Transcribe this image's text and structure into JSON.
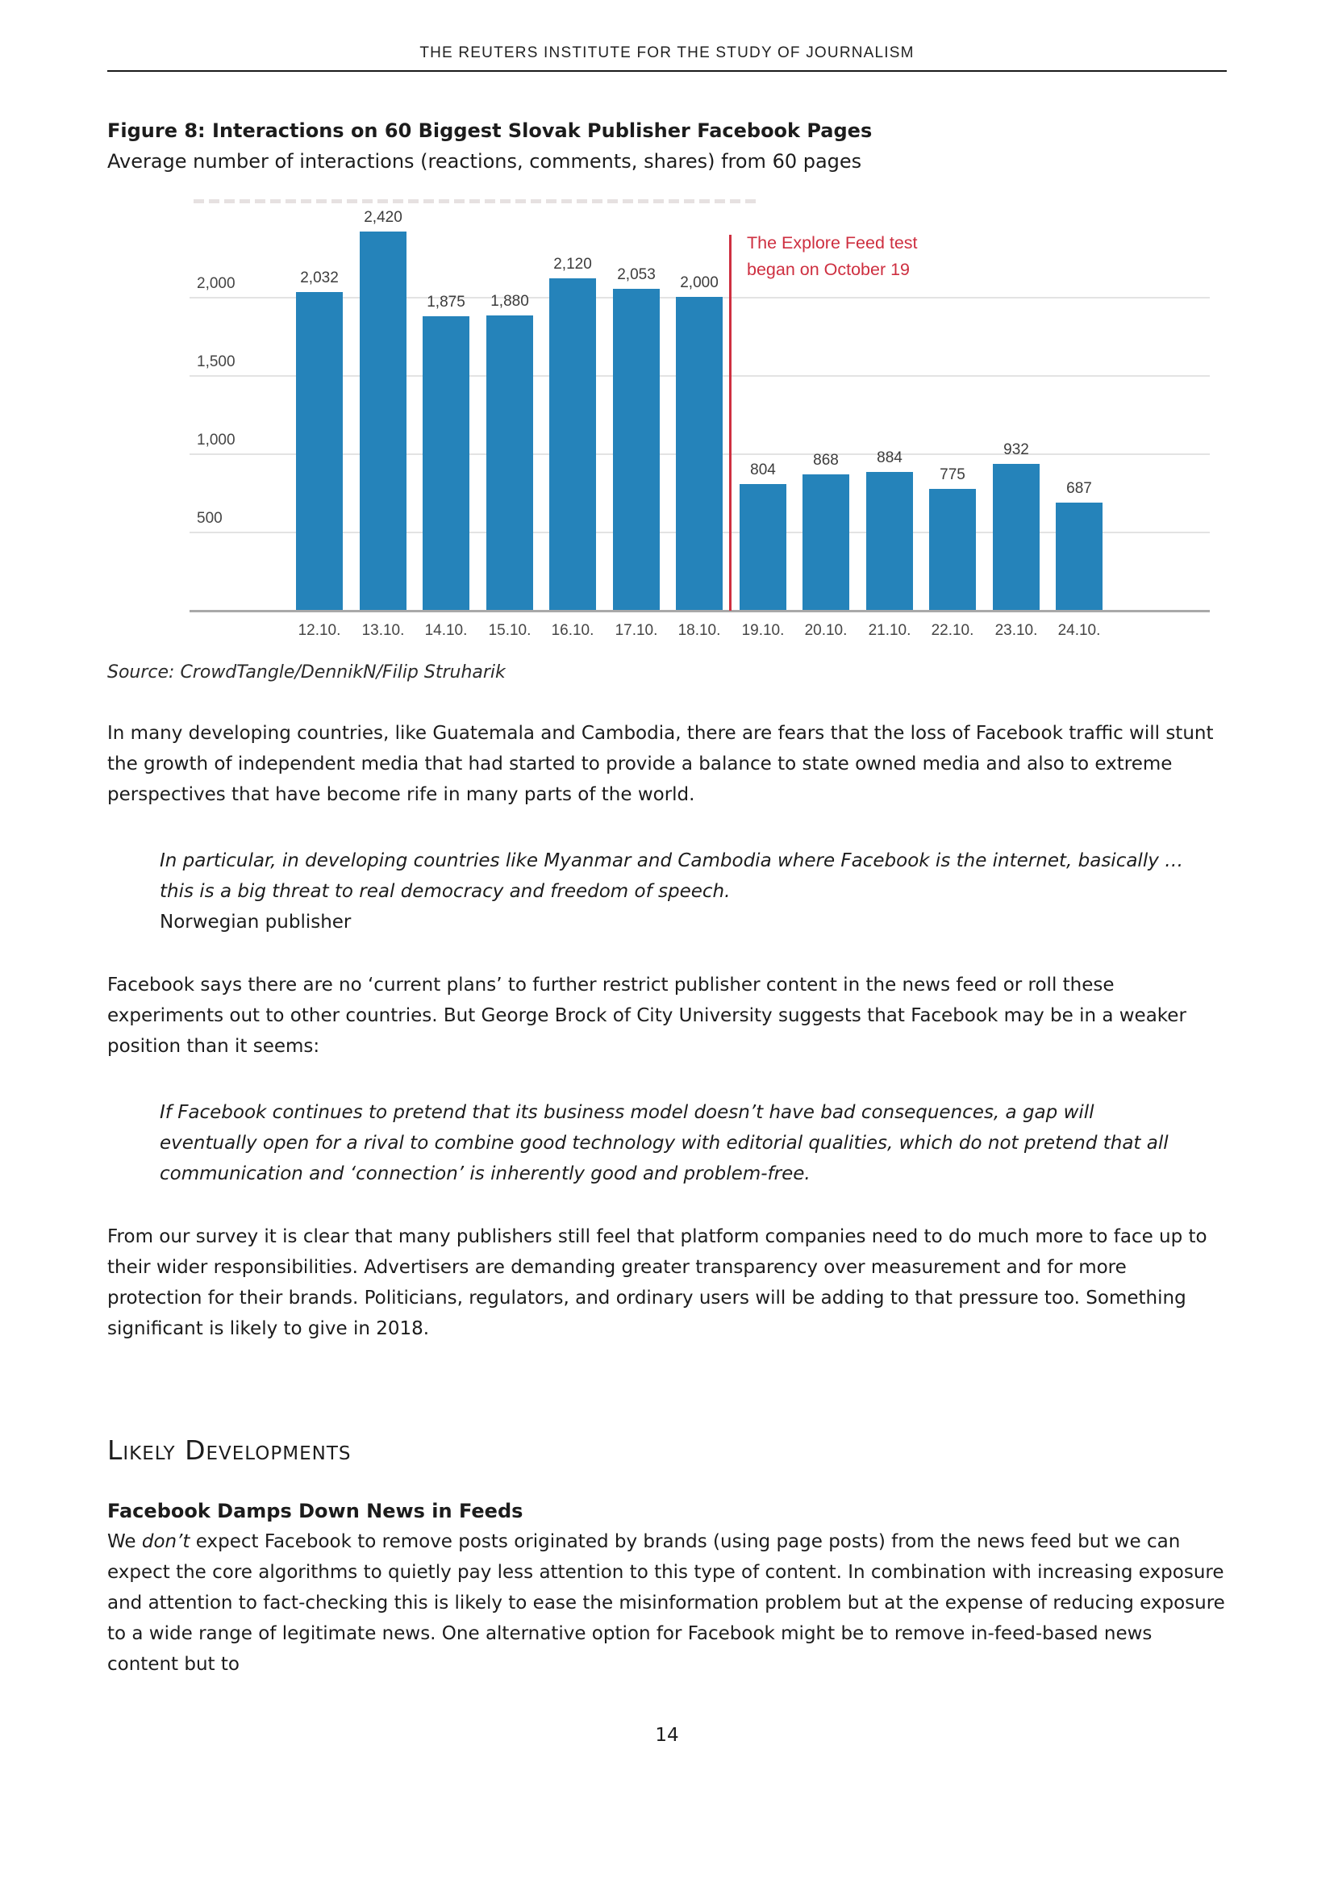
{
  "page": {
    "running_head": "THE REUTERS INSTITUTE FOR THE STUDY OF JOURNALISM",
    "page_number": "14"
  },
  "figure": {
    "title": "Figure 8: Interactions on 60 Biggest Slovak Publisher Facebook Pages",
    "subtitle": "Average number of interactions (reactions, comments, shares) from 60 pages",
    "source": "Source: CrowdTangle/DennikN/Filip Struharik"
  },
  "chart_data": {
    "type": "bar",
    "title": "Interactions on 60 Biggest Slovak Publisher Facebook Pages",
    "subtitle": "Average number of interactions (reactions, comments, shares) from 60 pages",
    "categories": [
      "12.10.",
      "13.10.",
      "14.10.",
      "15.10.",
      "16.10.",
      "17.10.",
      "18.10.",
      "19.10.",
      "20.10.",
      "21.10.",
      "22.10.",
      "23.10.",
      "24.10."
    ],
    "values": [
      2032,
      2420,
      1875,
      1880,
      2120,
      2053,
      2000,
      804,
      868,
      884,
      775,
      932,
      687
    ],
    "value_labels": [
      "2,032",
      "2,420",
      "1,875",
      "1,880",
      "2,120",
      "2,053",
      "2,000",
      "804",
      "868",
      "884",
      "775",
      "932",
      "687"
    ],
    "xlabel": "",
    "ylabel": "",
    "ylim": [
      0,
      2665
    ],
    "yticks": [
      500,
      1000,
      1500,
      2000
    ],
    "ytick_labels": [
      "500",
      "1,000",
      "1,500",
      "2,000"
    ],
    "grid": true,
    "legend": "none",
    "bar_color": "#2583ba",
    "annotation": {
      "line1": "The Explore Feed test",
      "line2": "began on October 19",
      "between_categories": [
        "18.10.",
        "19.10."
      ],
      "color": "#ce2f40"
    }
  },
  "body": {
    "para1": "In many developing countries, like Guatemala and Cambodia, there are fears that the loss of Facebook traffic will stunt the growth of independent media that had started to provide a balance to state owned media and also to extreme perspectives that have become rife in many parts of the world.",
    "quote1_text": "In particular, in developing countries like Myanmar and Cambodia where Facebook is the internet, basically … this is a big threat to real democracy and freedom of speech.",
    "quote1_attribution": "Norwegian publisher",
    "para2": "Facebook says there are no ‘current plans’ to further restrict publisher content in the news feed or roll these experiments out to other countries. But George Brock of City University suggests that Facebook may be in a weaker position than it seems:",
    "quote2_text": "If Facebook continues to pretend that its business model doesn’t have bad consequences, a gap will eventually open for a rival to combine good technology with editorial qualities, which do not pretend that all communication and ‘connection’ is inherently good and problem-free.",
    "para3": "From our survey it is clear that many publishers still feel that platform companies need to do much more to face up to their wider responsibilities. Advertisers are demanding greater transparency over measurement and for more protection for their brands. Politicians, regulators, and ordinary users will be adding to that pressure too. Something significant is likely to give in 2018.",
    "section_heading": "Likely Developments",
    "subheading": "Facebook Damps Down News in Feeds",
    "para4_prefix": "We ",
    "para4_italic": "don’t",
    "para4_rest": " expect Facebook to remove posts originated by brands (using page posts) from the news feed but we can expect the core algorithms to quietly pay less attention to this type of content. In combination with increasing exposure and attention to fact-checking this is likely to ease the misinformation problem but at the expense of reducing exposure to a wide range of legitimate news. One alternative option for Facebook might be to remove in-feed-based news content but to"
  }
}
